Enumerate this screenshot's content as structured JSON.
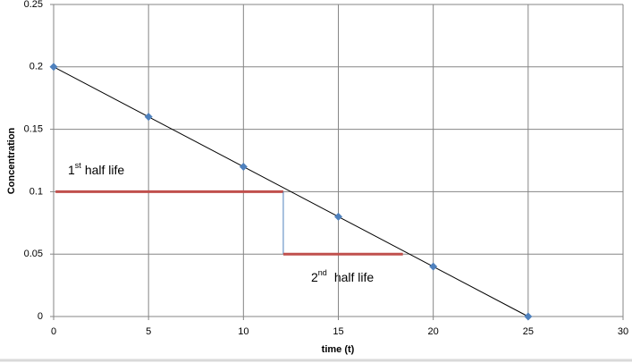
{
  "chart_data": {
    "type": "line",
    "x_label": "time (t)",
    "y_label": "Concentration",
    "x": [
      0,
      5,
      10,
      15,
      20,
      25
    ],
    "series": [
      {
        "values": [
          0.2,
          0.16,
          0.12,
          0.08,
          0.04,
          0
        ],
        "color": "#000000",
        "marker_color": "#4f81bd"
      }
    ],
    "xlim": [
      0,
      30
    ],
    "xticks": [
      0,
      5,
      10,
      15,
      20,
      25,
      30
    ],
    "ylim": [
      0,
      0.25
    ],
    "yticks": [
      0,
      0.05,
      0.1,
      0.15,
      0.2,
      0.25
    ],
    "grid": true,
    "half_life_lines": [
      {
        "x": [
          0.1,
          12.1
        ],
        "y": [
          0.1,
          0.1
        ],
        "color": "#c0504d"
      },
      {
        "x": [
          12.1,
          12.1
        ],
        "y": [
          0.1,
          0.05
        ],
        "color": "#4f81bd"
      },
      {
        "x": [
          12.1,
          18.4
        ],
        "y": [
          0.05,
          0.05
        ],
        "color": "#c0504d"
      }
    ],
    "annotations": [
      {
        "number": "1",
        "suffix": "st",
        "text": "half life"
      },
      {
        "number": "2",
        "suffix": "nd",
        "text": "half life"
      }
    ]
  }
}
